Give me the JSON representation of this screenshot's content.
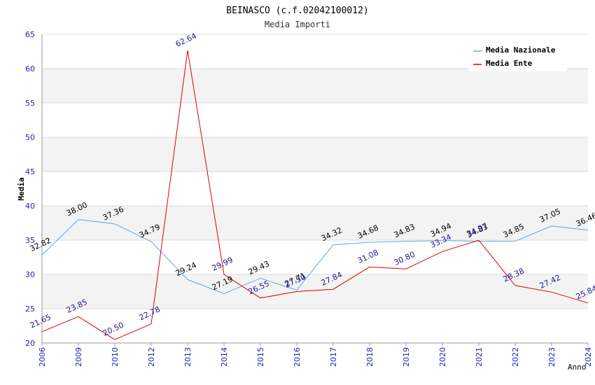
{
  "chart_data": {
    "type": "line",
    "title": "BEINASCO (c.f.02042100012)",
    "subtitle": "Media Importi",
    "xlabel": "Anno",
    "ylabel": "Media",
    "ylim": [
      20,
      65
    ],
    "yticks": [
      "20",
      "25",
      "30",
      "35",
      "40",
      "45",
      "50",
      "55",
      "60",
      "65"
    ],
    "categories": [
      "2006",
      "2009",
      "2010",
      "2012",
      "2013",
      "2014",
      "2015",
      "2016",
      "2017",
      "2018",
      "2019",
      "2020",
      "2021",
      "2022",
      "2023",
      "2024"
    ],
    "legend_position": "top-right",
    "series": [
      {
        "name": "Media Nazionale",
        "color": "#5fa8e6",
        "label_color": "#000000",
        "values": [
          32.82,
          38.0,
          37.36,
          34.79,
          29.24,
          27.19,
          29.43,
          27.71,
          34.32,
          34.68,
          34.83,
          34.94,
          34.83,
          34.85,
          37.05,
          36.46
        ],
        "labels": [
          "32.82",
          "38.00",
          "37.36",
          "34.79",
          "29.24",
          "27.19",
          "29.43",
          "27.71",
          "34.32",
          "34.68",
          "34.83",
          "34.94",
          "34.83",
          "34.85",
          "37.05",
          "36.46"
        ]
      },
      {
        "name": "Media Ente",
        "color": "#e00000",
        "label_color": "#1a1a8c",
        "values": [
          21.65,
          23.85,
          20.5,
          22.78,
          62.64,
          29.99,
          26.55,
          27.5,
          27.84,
          31.08,
          30.8,
          33.34,
          34.97,
          28.38,
          27.42,
          25.84
        ],
        "labels": [
          "21.65",
          "23.85",
          "20.50",
          "22.78",
          "62.64",
          "29.99",
          "26.55",
          "27.50",
          "27.84",
          "31.08",
          "30.80",
          "33.34",
          "34.97",
          "28.38",
          "27.42",
          "25.84"
        ]
      }
    ]
  }
}
